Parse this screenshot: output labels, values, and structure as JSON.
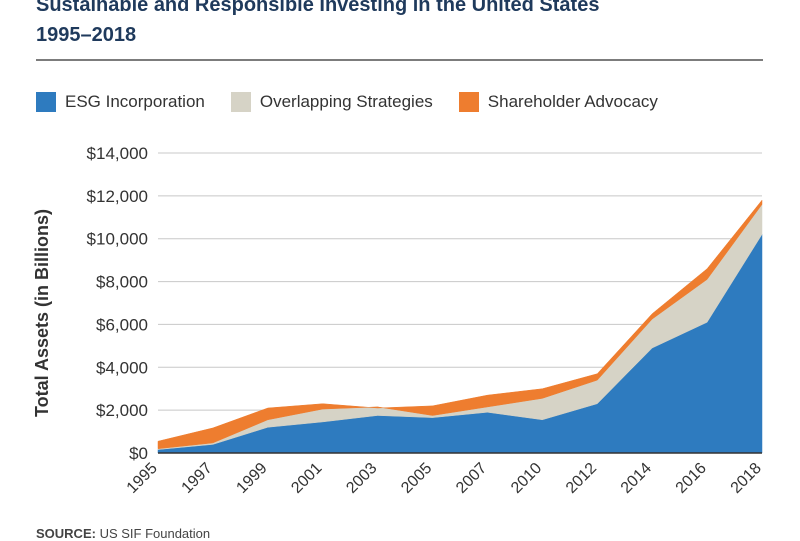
{
  "title_line1": "Sustainable and Responsible Investing in the United States",
  "title_line2": "1995–2018",
  "source_label": "SOURCE:",
  "source_text": " US SIF Foundation",
  "colors": {
    "esg": "#2e7bbf",
    "overlap": "#d6d3c6",
    "advocacy": "#ee7d2f",
    "grid": "#c8c8c8",
    "axis": "#333333"
  },
  "chart_data": {
    "type": "area",
    "stacked": true,
    "ylabel": "Total Assets (in Billions)",
    "xlabel": "",
    "ylim": [
      0,
      14000
    ],
    "yticks": [
      0,
      2000,
      4000,
      6000,
      8000,
      10000,
      12000,
      14000
    ],
    "ytick_labels": [
      "$0",
      "$2,000",
      "$4,000",
      "$6,000",
      "$8,000",
      "$10,000",
      "$12,000",
      "$14,000"
    ],
    "categories": [
      "1995",
      "1997",
      "1999",
      "2001",
      "2003",
      "2005",
      "2007",
      "2010",
      "2012",
      "2014",
      "2016",
      "2018"
    ],
    "legend_position": "top",
    "grid": "horizontal",
    "series": [
      {
        "name": "ESG Incorporation",
        "color": "#2e7bbf",
        "values": [
          160,
          400,
          1200,
          1450,
          1750,
          1650,
          1900,
          1550,
          2300,
          4900,
          6100,
          10200
        ]
      },
      {
        "name": "Overlapping Strategies",
        "color": "#d6d3c6",
        "values": [
          40,
          70,
          350,
          600,
          400,
          100,
          250,
          1000,
          1100,
          1350,
          2000,
          1400
        ]
      },
      {
        "name": "Shareholder Advocacy",
        "color": "#ee7d2f",
        "values": [
          350,
          700,
          550,
          250,
          -50,
          450,
          550,
          450,
          300,
          250,
          500,
          200
        ]
      }
    ]
  }
}
